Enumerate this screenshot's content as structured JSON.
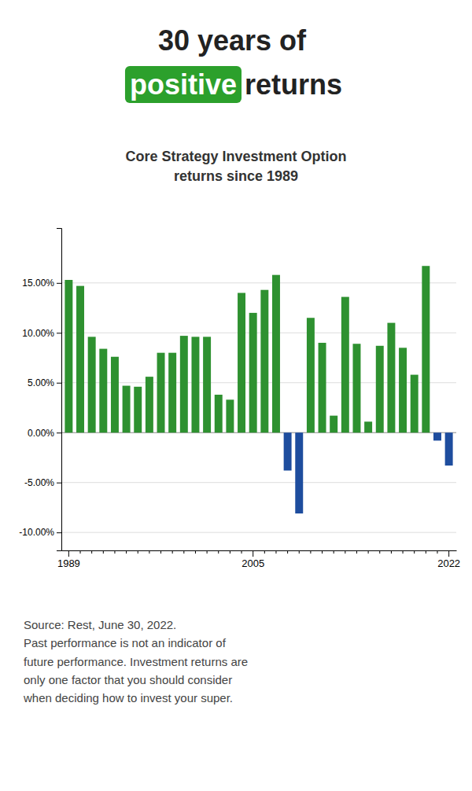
{
  "chart_data": {
    "type": "bar",
    "title": "30 years of positive returns",
    "subtitle": "Core Strategy Investment Option\nreturns since 1989",
    "annotations": [
      "Source: Rest, June 30, 2022.\nPast performance is not an indicator of\nfuture performance. Investment returns are\nonly one factor that you should consider\nwhen deciding how to invest your super."
    ],
    "categories": [
      "1989",
      null,
      null,
      null,
      null,
      null,
      null,
      null,
      null,
      null,
      null,
      null,
      null,
      null,
      null,
      null,
      "2005",
      null,
      null,
      null,
      null,
      null,
      null,
      null,
      null,
      null,
      null,
      null,
      null,
      null,
      null,
      null,
      null,
      "2022"
    ],
    "values": [
      15.3,
      14.7,
      9.6,
      8.4,
      7.6,
      4.7,
      4.6,
      5.6,
      8.0,
      8.0,
      9.7,
      9.6,
      9.6,
      3.8,
      3.3,
      14.0,
      12.0,
      14.3,
      15.8,
      -3.8,
      -8.1,
      11.5,
      9.0,
      1.7,
      13.6,
      8.9,
      1.1,
      8.7,
      11.0,
      8.5,
      5.8,
      16.7,
      -0.8,
      -3.3
    ],
    "colors": [
      "#2e9130",
      "#2e9130",
      "#2e9130",
      "#2e9130",
      "#2e9130",
      "#2e9130",
      "#2e9130",
      "#2e9130",
      "#2e9130",
      "#2e9130",
      "#2e9130",
      "#2e9130",
      "#2e9130",
      "#2e9130",
      "#2e9130",
      "#2e9130",
      "#2e9130",
      "#2e9130",
      "#2e9130",
      "#1e4d9e",
      "#1e4d9e",
      "#2e9130",
      "#2e9130",
      "#2e9130",
      "#2e9130",
      "#2e9130",
      "#2e9130",
      "#2e9130",
      "#2e9130",
      "#2e9130",
      "#2e9130",
      "#2e9130",
      "#1e4d9e",
      "#1e4d9e"
    ],
    "ylim": [
      -11.8,
      20.5
    ],
    "yticks": [
      {
        "value": -10,
        "label": "-10.00%"
      },
      {
        "value": -5,
        "label": "-5.00%"
      },
      {
        "value": 0,
        "label": "0.00%"
      },
      {
        "value": 5,
        "label": "5.00%"
      },
      {
        "value": 10,
        "label": "10.00%"
      },
      {
        "value": 15,
        "label": "15.00%"
      }
    ],
    "grid": true
  }
}
